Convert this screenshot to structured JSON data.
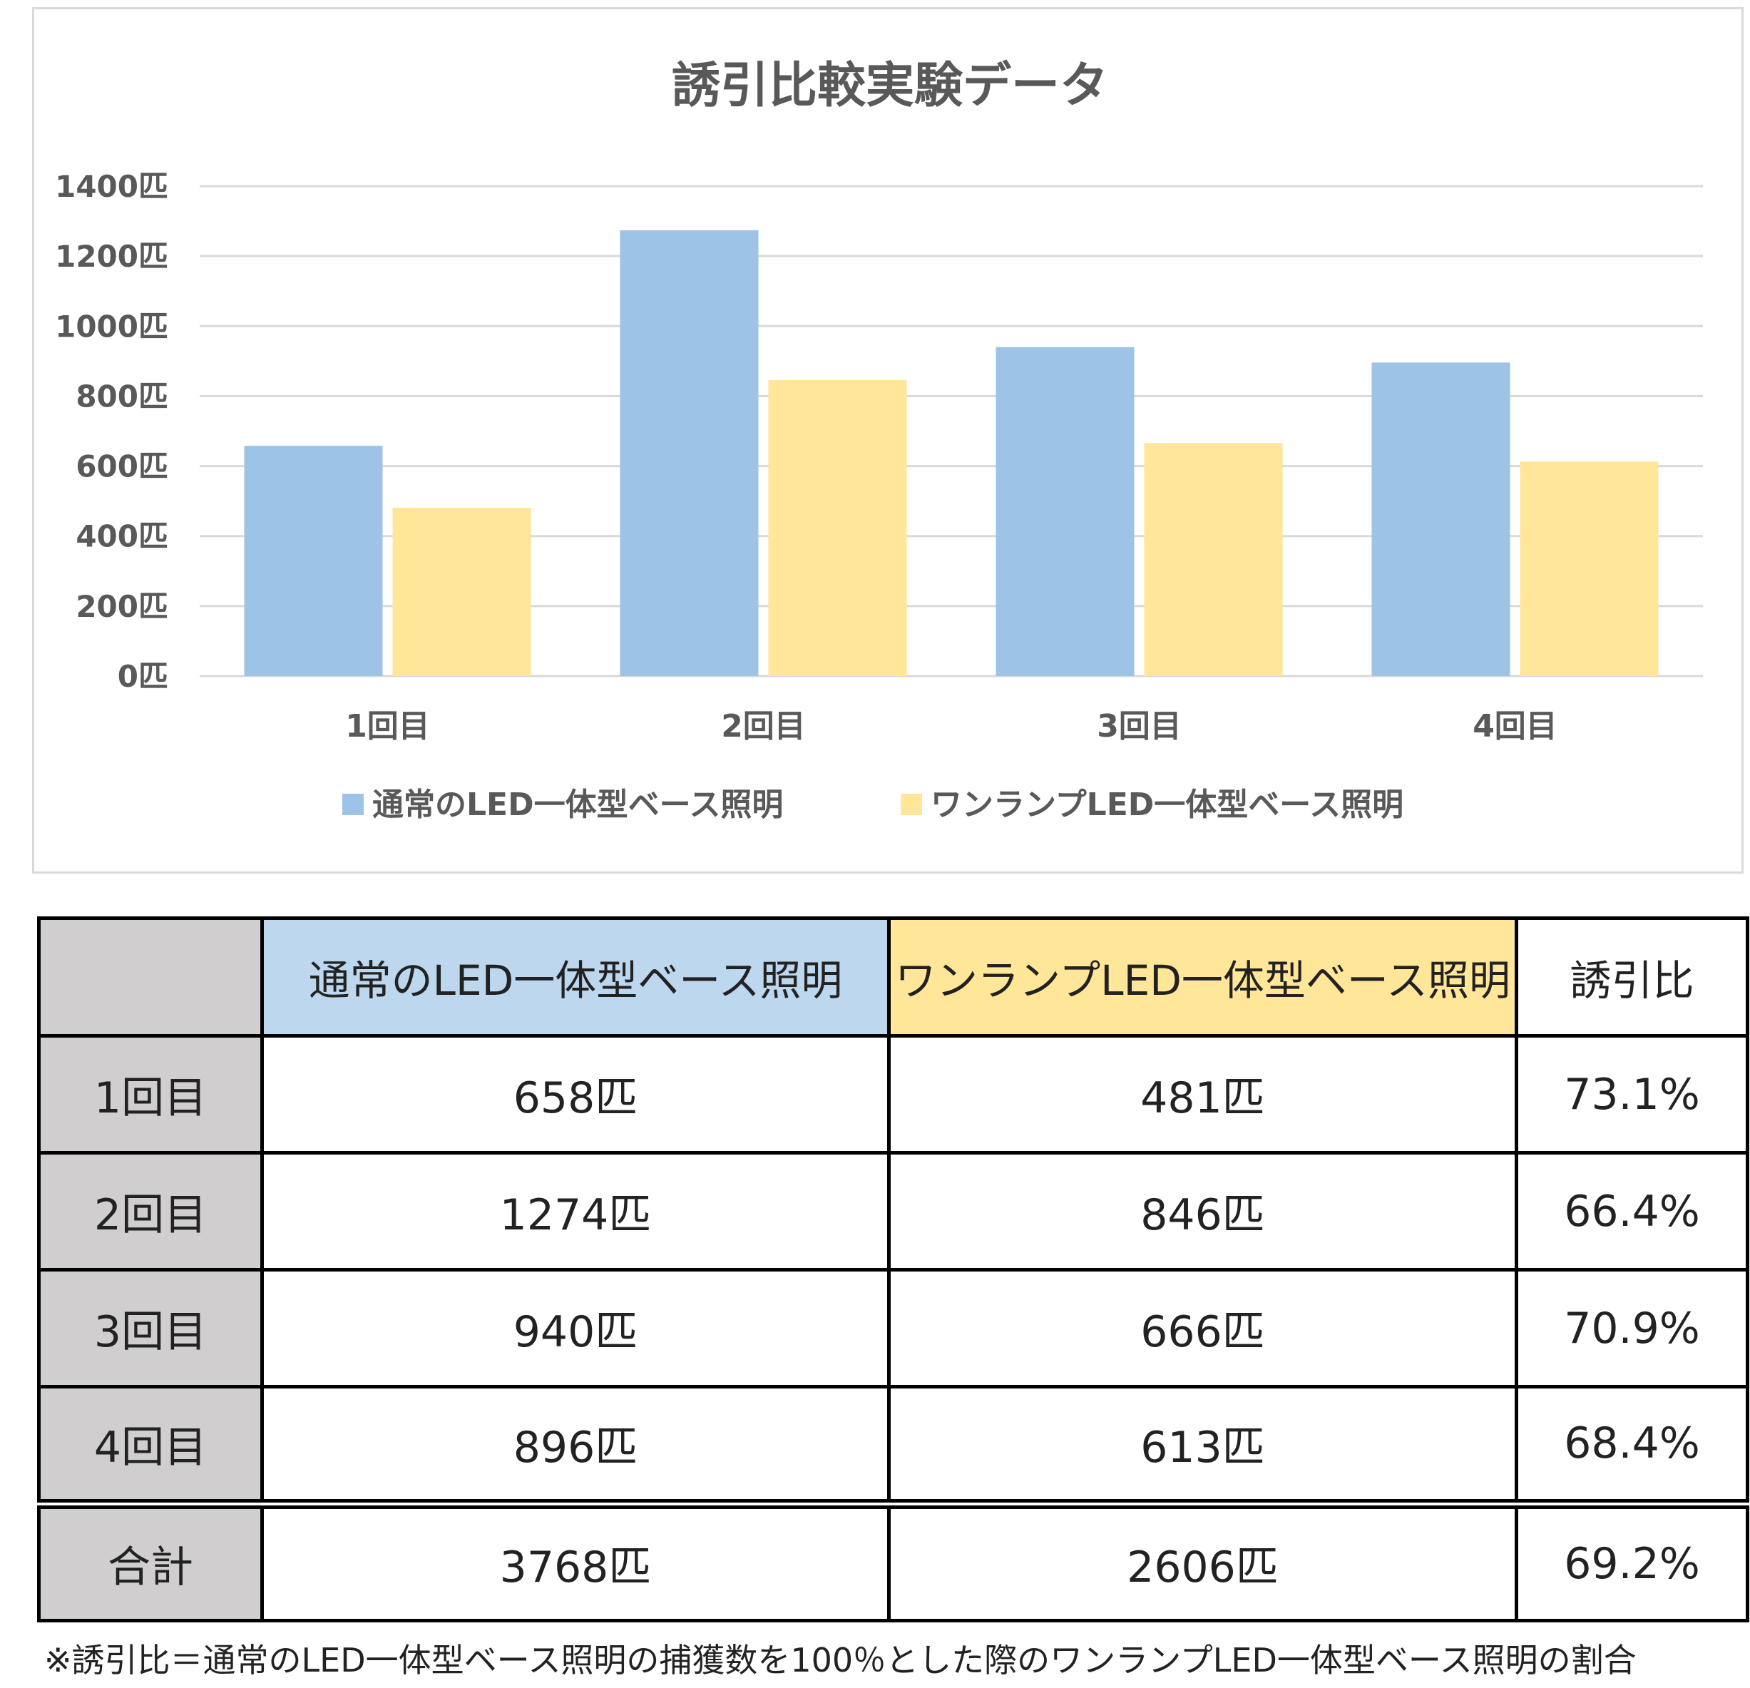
{
  "chart_data": {
    "type": "bar",
    "title": "誘引比較実験データ",
    "categories": [
      "1回目",
      "2回目",
      "3回目",
      "4回目"
    ],
    "series": [
      {
        "name": "通常のLED一体型ベース照明",
        "values": [
          658,
          1274,
          940,
          896
        ],
        "color": "#9dc3e6"
      },
      {
        "name": "ワンランプLED一体型ベース照明",
        "values": [
          481,
          846,
          666,
          613
        ],
        "color": "#ffe699"
      }
    ],
    "ylim": [
      0,
      1400
    ],
    "yticks": [
      0,
      200,
      400,
      600,
      800,
      1000,
      1200,
      1400
    ],
    "ytick_suffix": "匹",
    "grid": true,
    "legend_position": "bottom"
  },
  "table": {
    "headers": [
      "",
      "通常のLED一体型ベース照明",
      "ワンランプLED一体型ベース照明",
      "誘引比"
    ],
    "rows": [
      {
        "label": "1回目",
        "normal": "658匹",
        "onelamp": "481匹",
        "ratio": "73.1%"
      },
      {
        "label": "2回目",
        "normal": "1274匹",
        "onelamp": "846匹",
        "ratio": "66.4%"
      },
      {
        "label": "3回目",
        "normal": "940匹",
        "onelamp": "666匹",
        "ratio": "70.9%"
      },
      {
        "label": "4回目",
        "normal": "896匹",
        "onelamp": "613匹",
        "ratio": "68.4%"
      }
    ],
    "total": {
      "label": "合計",
      "normal": "3768匹",
      "onelamp": "2606匹",
      "ratio": "69.2%"
    }
  },
  "footnote": "※誘引比＝通常のLED一体型ベース照明の捕獲数を100％とした際のワンランプLED一体型ベース照明の割合"
}
